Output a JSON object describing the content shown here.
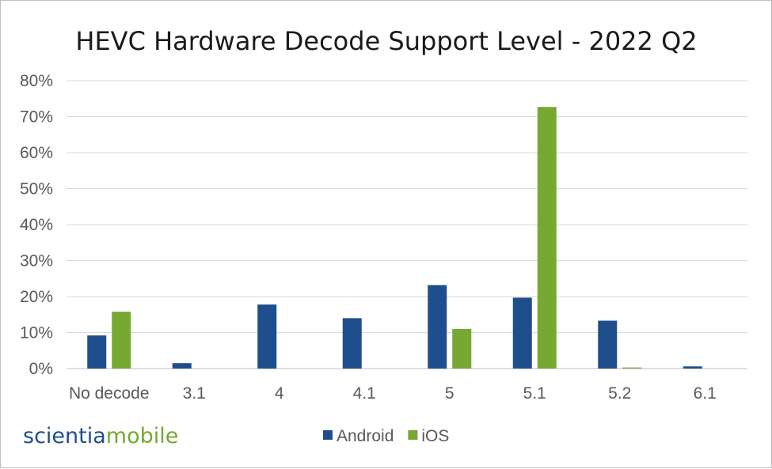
{
  "chart_data": {
    "type": "bar",
    "title": "HEVC Hardware Decode Support Level - 2022 Q2",
    "categories": [
      "No decode",
      "3.1",
      "4",
      "4.1",
      "5",
      "5.1",
      "5.2",
      "6.1"
    ],
    "series": [
      {
        "name": "Android",
        "color": "#1f4e8c",
        "values": [
          9.2,
          1.5,
          17.8,
          14.0,
          23.2,
          19.7,
          13.3,
          0.6
        ]
      },
      {
        "name": "iOS",
        "color": "#76a832",
        "values": [
          15.8,
          0,
          0,
          0,
          11.0,
          72.7,
          0.3,
          0
        ]
      }
    ],
    "ylim": [
      0,
      80
    ],
    "yticks": [
      0,
      10,
      20,
      30,
      40,
      50,
      60,
      70,
      80
    ],
    "ytick_labels": [
      "0%",
      "10%",
      "20%",
      "30%",
      "40%",
      "50%",
      "60%",
      "70%",
      "80%"
    ],
    "grid": true,
    "legend_position": "bottom-center"
  },
  "branding": {
    "logo_part1": "scientia",
    "logo_part2": "mobile",
    "logo_color1": "#1f4e8c",
    "logo_color2": "#76a832"
  }
}
